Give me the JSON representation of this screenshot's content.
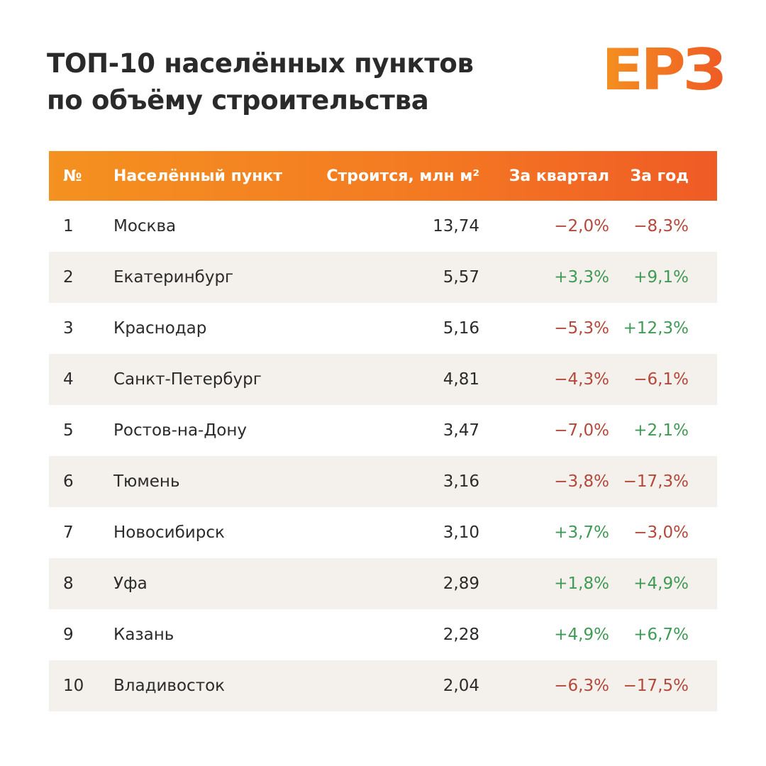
{
  "header": {
    "title_line1": "ТОП-10 населённых пунктов",
    "title_line2": "по объёму строительства",
    "logo_text": "ЕРЗ"
  },
  "colors": {
    "accent_orange": "#f47a22",
    "negative": "#b4483a",
    "positive": "#3f9a55",
    "row_alt_bg": "#f4f1ed"
  },
  "chart_data": {
    "type": "table",
    "columns": [
      "№",
      "Населённый пункт",
      "Строится, млн м²",
      "За квартал",
      "За год"
    ],
    "rows": [
      {
        "num": "1",
        "city": "Москва",
        "volume": "13,74",
        "quarter": "−2,0%",
        "year": "−8,3%"
      },
      {
        "num": "2",
        "city": "Екатеринбург",
        "volume": "5,57",
        "quarter": "+3,3%",
        "year": "+9,1%"
      },
      {
        "num": "3",
        "city": "Краснодар",
        "volume": "5,16",
        "quarter": "−5,3%",
        "year": "+12,3%"
      },
      {
        "num": "4",
        "city": "Санкт-Петербург",
        "volume": "4,81",
        "quarter": "−4,3%",
        "year": "−6,1%"
      },
      {
        "num": "5",
        "city": "Ростов-на-Дону",
        "volume": "3,47",
        "quarter": "−7,0%",
        "year": "+2,1%"
      },
      {
        "num": "6",
        "city": "Тюмень",
        "volume": "3,16",
        "quarter": "−3,8%",
        "year": "−17,3%"
      },
      {
        "num": "7",
        "city": "Новосибирск",
        "volume": "3,10",
        "quarter": "+3,7%",
        "year": "−3,0%"
      },
      {
        "num": "8",
        "city": "Уфа",
        "volume": "2,89",
        "quarter": "+1,8%",
        "year": "+4,9%"
      },
      {
        "num": "9",
        "city": "Казань",
        "volume": "2,28",
        "quarter": "+4,9%",
        "year": "+6,7%"
      },
      {
        "num": "10",
        "city": "Владивосток",
        "volume": "2,04",
        "quarter": "−6,3%",
        "year": "−17,5%"
      }
    ]
  }
}
